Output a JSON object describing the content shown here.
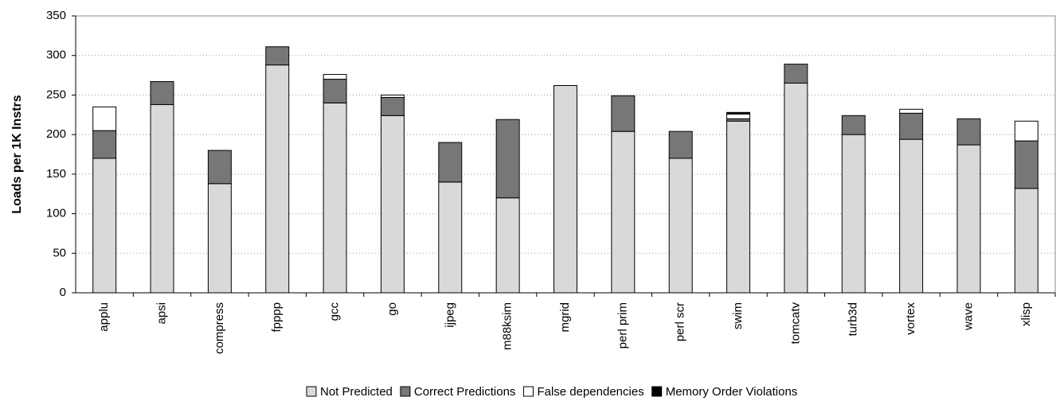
{
  "chart_data": {
    "type": "stacked_bar",
    "y_label": "Loads per 1K Instrs",
    "categories": [
      "applu",
      "apsi",
      "compress",
      "fpppp",
      "gcc",
      "go",
      "ijpeg",
      "m88ksim",
      "mgrid",
      "perl prim",
      "perl scr",
      "swim",
      "tomcatv",
      "turb3d",
      "vortex",
      "wave",
      "xlisp"
    ],
    "series": [
      {
        "name": "Not Predicted",
        "color": "#d9d9d9",
        "values": [
          170,
          238,
          138,
          288,
          240,
          224,
          140,
          120,
          262,
          204,
          170,
          217,
          265,
          200,
          194,
          187,
          132
        ]
      },
      {
        "name": "Correct Predictions",
        "color": "#777777",
        "values": [
          35,
          29,
          42,
          23,
          30,
          23,
          50,
          99,
          0,
          45,
          34,
          3,
          24,
          24,
          33,
          33,
          60
        ]
      },
      {
        "name": "False dependencies",
        "color": "#ffffff",
        "values": [
          30,
          0,
          0,
          0,
          6,
          3,
          0,
          0,
          0,
          0,
          0,
          6,
          0,
          0,
          5,
          0,
          25
        ]
      },
      {
        "name": "Memory Order Violations",
        "color": "#000000",
        "values": [
          0,
          0,
          0,
          0,
          0,
          0,
          0,
          0,
          0,
          0,
          0,
          2,
          0,
          0,
          0,
          0,
          0
        ]
      }
    ],
    "ylim": [
      0,
      350
    ],
    "yticks": [
      0,
      50,
      100,
      150,
      200,
      250,
      300,
      350
    ],
    "grid": true,
    "legend": "bottom"
  }
}
